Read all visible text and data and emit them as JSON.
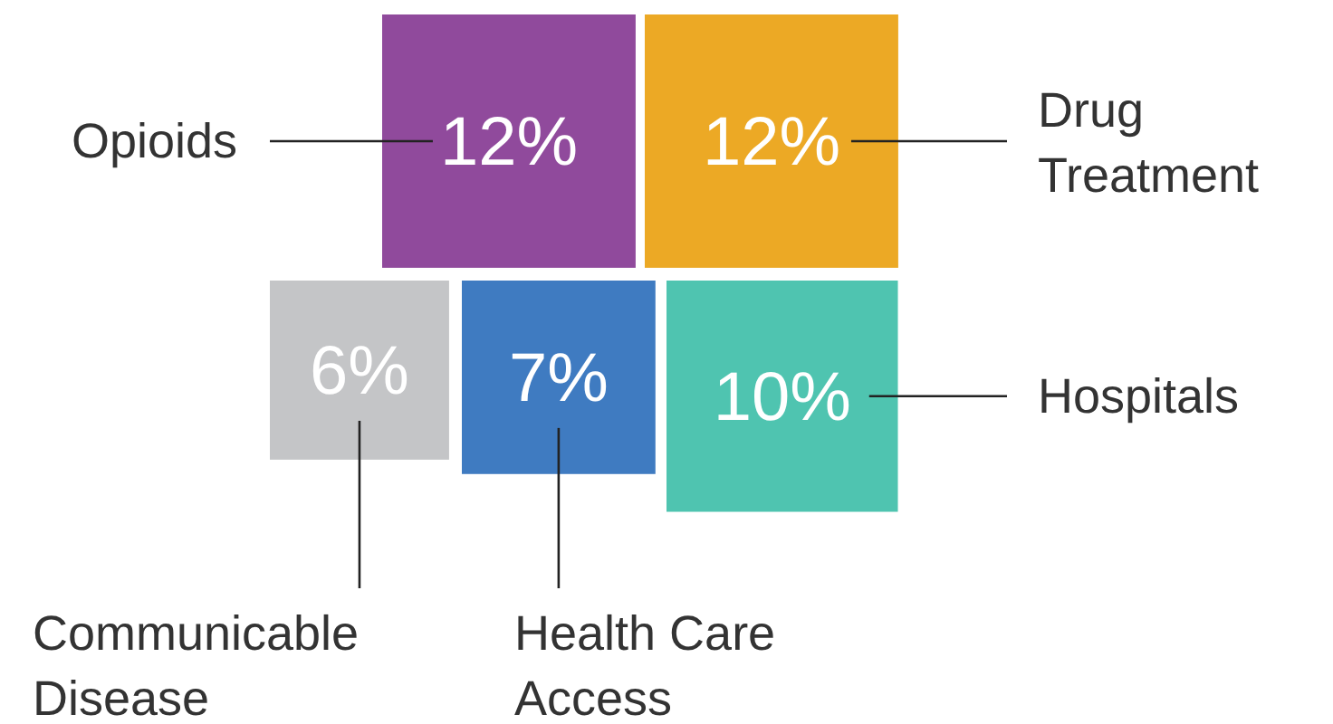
{
  "chart_data": {
    "type": "other",
    "categories": [
      "Opioids",
      "Drug Treatment",
      "Communicable Disease",
      "Health Care Access",
      "Hospitals"
    ],
    "values": [
      12,
      12,
      6,
      7,
      10
    ],
    "value_labels": [
      "12%",
      "12%",
      "6%",
      "7%",
      "10%"
    ],
    "colors": [
      "#904a9c",
      "#eca925",
      "#c4c5c7",
      "#3f7bc1",
      "#4fc4b0"
    ]
  }
}
